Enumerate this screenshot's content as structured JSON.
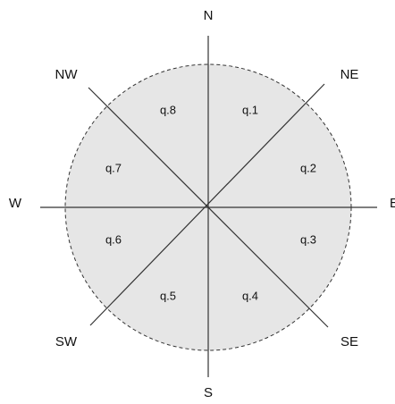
{
  "directions": {
    "n": "N",
    "ne": "NE",
    "e": "E",
    "se": "SE",
    "s": "S",
    "sw": "SW",
    "w": "W",
    "nw": "NW"
  },
  "sectors": [
    "q.1",
    "q.2",
    "q.3",
    "q.4",
    "q.5",
    "q.6",
    "q.7",
    "q.8"
  ]
}
